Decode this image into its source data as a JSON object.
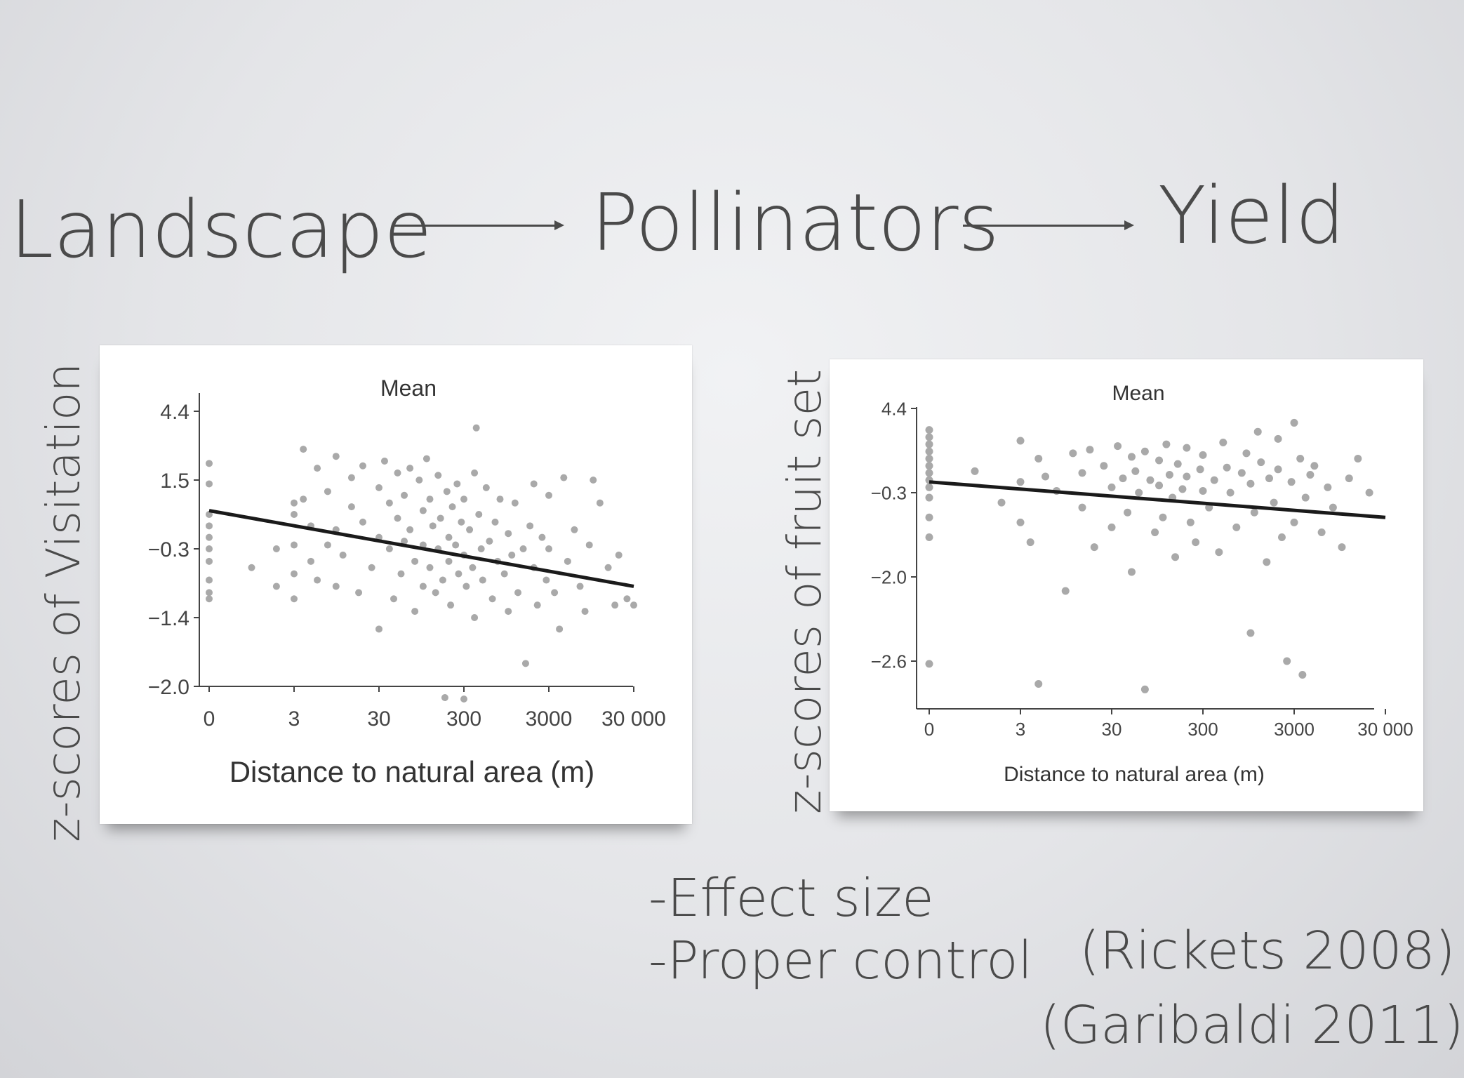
{
  "flow": {
    "landscape": "Landscape",
    "pollinators": "Pollinators",
    "yield": "Yield"
  },
  "notes": {
    "effect": "-Effect size",
    "control": "-Proper control"
  },
  "citations": {
    "rickets": "(Rickets 2008)",
    "garibaldi": "(Garibaldi 2011)"
  },
  "chart_data": [
    {
      "type": "scatter",
      "title": "Mean",
      "xlabel": "Distance to natural area (m)",
      "ylabel": "z-scores of Visitation",
      "x_ticks": [
        "0",
        "3",
        "30",
        "300",
        "3000",
        "30 000"
      ],
      "y_ticks": [
        "4.4",
        "1.5",
        "−0.3",
        "−1.4",
        "−2.0"
      ],
      "point_color": "#a9a9a9",
      "trend": {
        "from": {
          "x": 0,
          "y": 0.7
        },
        "to": {
          "x": 30000,
          "y": -0.9
        }
      },
      "points": [
        {
          "x": 0,
          "y": 2.2
        },
        {
          "x": 0,
          "y": 1.4
        },
        {
          "x": 0,
          "y": 0.6
        },
        {
          "x": 0,
          "y": 0.3
        },
        {
          "x": 0,
          "y": 0.0
        },
        {
          "x": 0,
          "y": -0.3
        },
        {
          "x": 0,
          "y": -0.5
        },
        {
          "x": 0,
          "y": -0.8
        },
        {
          "x": 0,
          "y": -1.0
        },
        {
          "x": 0,
          "y": -1.1
        },
        {
          "x": 1,
          "y": -0.6
        },
        {
          "x": 2,
          "y": -0.3
        },
        {
          "x": 2,
          "y": -0.9
        },
        {
          "x": 3,
          "y": 0.9
        },
        {
          "x": 3,
          "y": 0.6
        },
        {
          "x": 3,
          "y": -0.2
        },
        {
          "x": 3,
          "y": -0.7
        },
        {
          "x": 3,
          "y": -1.1
        },
        {
          "x": 4,
          "y": 2.8
        },
        {
          "x": 4,
          "y": 1.0
        },
        {
          "x": 5,
          "y": 0.3
        },
        {
          "x": 5,
          "y": -0.5
        },
        {
          "x": 6,
          "y": 2.0
        },
        {
          "x": 6,
          "y": -0.8
        },
        {
          "x": 8,
          "y": 1.2
        },
        {
          "x": 8,
          "y": -0.2
        },
        {
          "x": 10,
          "y": 2.5
        },
        {
          "x": 10,
          "y": 0.2
        },
        {
          "x": 10,
          "y": -0.9
        },
        {
          "x": 12,
          "y": -0.4
        },
        {
          "x": 15,
          "y": 1.6
        },
        {
          "x": 15,
          "y": 0.8
        },
        {
          "x": 18,
          "y": -1.0
        },
        {
          "x": 20,
          "y": 2.1
        },
        {
          "x": 20,
          "y": 0.4
        },
        {
          "x": 25,
          "y": -0.6
        },
        {
          "x": 30,
          "y": 1.3
        },
        {
          "x": 30,
          "y": 0.0
        },
        {
          "x": 30,
          "y": -1.5
        },
        {
          "x": 35,
          "y": 2.3
        },
        {
          "x": 40,
          "y": 0.9
        },
        {
          "x": 40,
          "y": -0.3
        },
        {
          "x": 45,
          "y": -1.1
        },
        {
          "x": 50,
          "y": 1.8
        },
        {
          "x": 50,
          "y": 0.5
        },
        {
          "x": 55,
          "y": -0.7
        },
        {
          "x": 60,
          "y": 1.1
        },
        {
          "x": 60,
          "y": -0.1
        },
        {
          "x": 70,
          "y": 2.0
        },
        {
          "x": 70,
          "y": 0.2
        },
        {
          "x": 80,
          "y": -0.5
        },
        {
          "x": 80,
          "y": -1.3
        },
        {
          "x": 90,
          "y": 1.5
        },
        {
          "x": 100,
          "y": 0.7
        },
        {
          "x": 100,
          "y": -0.2
        },
        {
          "x": 100,
          "y": -0.9
        },
        {
          "x": 110,
          "y": 2.4
        },
        {
          "x": 120,
          "y": 1.0
        },
        {
          "x": 120,
          "y": -0.6
        },
        {
          "x": 130,
          "y": 0.3
        },
        {
          "x": 140,
          "y": -1.0
        },
        {
          "x": 150,
          "y": 1.7
        },
        {
          "x": 150,
          "y": -0.3
        },
        {
          "x": 160,
          "y": 0.5
        },
        {
          "x": 170,
          "y": -0.8
        },
        {
          "x": 180,
          "y": -2.4
        },
        {
          "x": 190,
          "y": 1.2
        },
        {
          "x": 200,
          "y": 0.0
        },
        {
          "x": 200,
          "y": -0.5
        },
        {
          "x": 210,
          "y": -1.2
        },
        {
          "x": 220,
          "y": 0.8
        },
        {
          "x": 240,
          "y": -0.2
        },
        {
          "x": 250,
          "y": 1.4
        },
        {
          "x": 260,
          "y": -0.7
        },
        {
          "x": 280,
          "y": 0.4
        },
        {
          "x": 300,
          "y": -2.45
        },
        {
          "x": 300,
          "y": 1.0
        },
        {
          "x": 300,
          "y": -0.4
        },
        {
          "x": 320,
          "y": -0.9
        },
        {
          "x": 350,
          "y": 0.2
        },
        {
          "x": 380,
          "y": -0.6
        },
        {
          "x": 400,
          "y": 1.8
        },
        {
          "x": 400,
          "y": -1.4
        },
        {
          "x": 420,
          "y": 3.7
        },
        {
          "x": 450,
          "y": 0.6
        },
        {
          "x": 480,
          "y": -0.3
        },
        {
          "x": 500,
          "y": -0.8
        },
        {
          "x": 550,
          "y": 1.3
        },
        {
          "x": 600,
          "y": -0.1
        },
        {
          "x": 650,
          "y": -1.1
        },
        {
          "x": 700,
          "y": 0.4
        },
        {
          "x": 750,
          "y": -0.5
        },
        {
          "x": 800,
          "y": 1.0
        },
        {
          "x": 900,
          "y": -0.7
        },
        {
          "x": 1000,
          "y": -1.3
        },
        {
          "x": 1000,
          "y": 0.1
        },
        {
          "x": 1100,
          "y": -0.4
        },
        {
          "x": 1200,
          "y": 0.9
        },
        {
          "x": 1300,
          "y": -1.0
        },
        {
          "x": 1500,
          "y": -0.3
        },
        {
          "x": 1600,
          "y": -1.8
        },
        {
          "x": 1800,
          "y": 0.3
        },
        {
          "x": 2000,
          "y": 1.4
        },
        {
          "x": 2000,
          "y": -0.6
        },
        {
          "x": 2200,
          "y": -1.2
        },
        {
          "x": 2500,
          "y": 0.0
        },
        {
          "x": 2800,
          "y": -0.8
        },
        {
          "x": 3000,
          "y": 1.1
        },
        {
          "x": 3000,
          "y": -0.3
        },
        {
          "x": 3500,
          "y": -1.0
        },
        {
          "x": 4000,
          "y": -1.5
        },
        {
          "x": 4500,
          "y": 1.6
        },
        {
          "x": 5000,
          "y": -0.5
        },
        {
          "x": 6000,
          "y": 0.2
        },
        {
          "x": 7000,
          "y": -0.9
        },
        {
          "x": 8000,
          "y": -1.3
        },
        {
          "x": 9000,
          "y": -0.2
        },
        {
          "x": 10000,
          "y": 1.5
        },
        {
          "x": 12000,
          "y": 0.9
        },
        {
          "x": 15000,
          "y": -0.6
        },
        {
          "x": 18000,
          "y": -1.2
        },
        {
          "x": 20000,
          "y": -0.4
        },
        {
          "x": 25000,
          "y": -1.1
        },
        {
          "x": 30000,
          "y": -1.2
        }
      ]
    },
    {
      "type": "scatter",
      "title": "Mean",
      "xlabel": "Distance to natural area (m)",
      "ylabel": "z-scores of fruit set",
      "x_ticks": [
        "0",
        "3",
        "30",
        "300",
        "3000",
        "30 000"
      ],
      "y_ticks": [
        "4.4",
        "−0.3",
        "−2.0",
        "−2.6"
      ],
      "point_color": "#a9a9a9",
      "trend": {
        "from": {
          "x": 0,
          "y": 0.3
        },
        "to": {
          "x": 30000,
          "y": -0.8
        }
      },
      "points": [
        {
          "x": 0,
          "y": 3.2
        },
        {
          "x": 0,
          "y": 2.8
        },
        {
          "x": 0,
          "y": 2.4
        },
        {
          "x": 0,
          "y": 2.0
        },
        {
          "x": 0,
          "y": 1.6
        },
        {
          "x": 0,
          "y": 1.2
        },
        {
          "x": 0,
          "y": 0.8
        },
        {
          "x": 0,
          "y": 0.4
        },
        {
          "x": 0,
          "y": 0.0
        },
        {
          "x": 0,
          "y": -0.4
        },
        {
          "x": 0,
          "y": -0.8
        },
        {
          "x": 0,
          "y": -1.2
        },
        {
          "x": 0,
          "y": -2.9
        },
        {
          "x": 1,
          "y": 0.9
        },
        {
          "x": 2,
          "y": -0.5
        },
        {
          "x": 3,
          "y": 2.6
        },
        {
          "x": 3,
          "y": 0.3
        },
        {
          "x": 3,
          "y": -0.9
        },
        {
          "x": 4,
          "y": -1.3
        },
        {
          "x": 5,
          "y": 1.6
        },
        {
          "x": 5,
          "y": -5.1
        },
        {
          "x": 6,
          "y": 0.6
        },
        {
          "x": 8,
          "y": -0.2
        },
        {
          "x": 10,
          "y": -2.1
        },
        {
          "x": 12,
          "y": 1.9
        },
        {
          "x": 15,
          "y": 0.8
        },
        {
          "x": 15,
          "y": -0.6
        },
        {
          "x": 18,
          "y": 2.1
        },
        {
          "x": 20,
          "y": -1.4
        },
        {
          "x": 25,
          "y": 1.2
        },
        {
          "x": 30,
          "y": 0.0
        },
        {
          "x": 30,
          "y": -1.0
        },
        {
          "x": 35,
          "y": 2.3
        },
        {
          "x": 40,
          "y": 0.5
        },
        {
          "x": 45,
          "y": -0.7
        },
        {
          "x": 50,
          "y": 1.7
        },
        {
          "x": 50,
          "y": -1.9
        },
        {
          "x": 55,
          "y": 0.9
        },
        {
          "x": 60,
          "y": -0.3
        },
        {
          "x": 70,
          "y": 2.0
        },
        {
          "x": 70,
          "y": -5.7
        },
        {
          "x": 80,
          "y": 0.4
        },
        {
          "x": 90,
          "y": -1.1
        },
        {
          "x": 100,
          "y": 1.5
        },
        {
          "x": 100,
          "y": 0.1
        },
        {
          "x": 110,
          "y": -0.8
        },
        {
          "x": 120,
          "y": 2.4
        },
        {
          "x": 130,
          "y": 0.7
        },
        {
          "x": 140,
          "y": -0.4
        },
        {
          "x": 150,
          "y": -1.6
        },
        {
          "x": 160,
          "y": 1.3
        },
        {
          "x": 180,
          "y": -0.1
        },
        {
          "x": 200,
          "y": 2.2
        },
        {
          "x": 200,
          "y": 0.6
        },
        {
          "x": 220,
          "y": -0.9
        },
        {
          "x": 250,
          "y": -1.3
        },
        {
          "x": 280,
          "y": 1.0
        },
        {
          "x": 300,
          "y": -0.2
        },
        {
          "x": 300,
          "y": 1.8
        },
        {
          "x": 350,
          "y": -0.6
        },
        {
          "x": 400,
          "y": 0.4
        },
        {
          "x": 450,
          "y": -1.5
        },
        {
          "x": 500,
          "y": 2.5
        },
        {
          "x": 550,
          "y": 1.1
        },
        {
          "x": 600,
          "y": -0.3
        },
        {
          "x": 700,
          "y": -1.0
        },
        {
          "x": 800,
          "y": 0.8
        },
        {
          "x": 900,
          "y": 1.9
        },
        {
          "x": 1000,
          "y": -2.4
        },
        {
          "x": 1000,
          "y": 0.2
        },
        {
          "x": 1100,
          "y": -0.7
        },
        {
          "x": 1200,
          "y": 3.1
        },
        {
          "x": 1300,
          "y": 1.4
        },
        {
          "x": 1500,
          "y": -1.7
        },
        {
          "x": 1600,
          "y": 0.5
        },
        {
          "x": 1800,
          "y": -0.5
        },
        {
          "x": 2000,
          "y": 2.7
        },
        {
          "x": 2000,
          "y": 1.0
        },
        {
          "x": 2200,
          "y": -1.2
        },
        {
          "x": 2500,
          "y": -2.6
        },
        {
          "x": 2800,
          "y": 0.3
        },
        {
          "x": 3000,
          "y": -0.9
        },
        {
          "x": 3000,
          "y": 3.6
        },
        {
          "x": 3500,
          "y": 1.6
        },
        {
          "x": 3700,
          "y": -4.1
        },
        {
          "x": 4000,
          "y": -0.4
        },
        {
          "x": 4500,
          "y": 0.7
        },
        {
          "x": 5000,
          "y": 1.2
        },
        {
          "x": 6000,
          "y": -1.1
        },
        {
          "x": 7000,
          "y": 0.0
        },
        {
          "x": 8000,
          "y": -0.6
        },
        {
          "x": 10000,
          "y": -1.4
        },
        {
          "x": 12000,
          "y": 0.5
        },
        {
          "x": 15000,
          "y": 1.6
        },
        {
          "x": 20000,
          "y": -0.3
        }
      ]
    }
  ]
}
